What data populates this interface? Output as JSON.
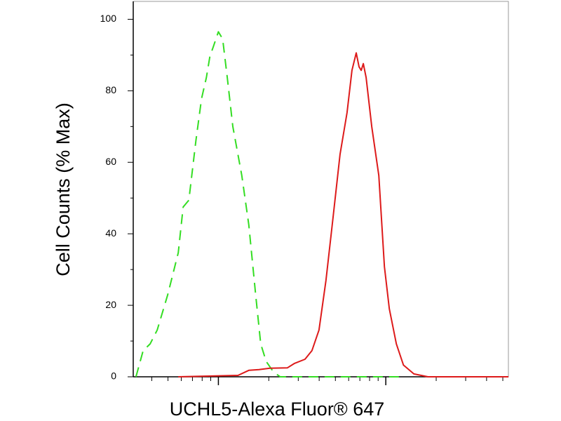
{
  "chart_data": {
    "type": "line",
    "x_label": "UCHL5-Alexa Fluor® 647",
    "y_label": "Cell Counts (% Max)",
    "xscale": "log",
    "xlim": [
      31,
      5400
    ],
    "xticks": [
      40,
      50,
      60,
      70,
      80,
      90,
      100,
      200,
      300,
      400,
      500,
      600,
      700,
      800,
      900,
      1000,
      2000,
      3000,
      4000,
      5000
    ],
    "ylim": [
      0,
      105
    ],
    "yticks": [
      0,
      20,
      40,
      60,
      80,
      100
    ],
    "yminorticks": [
      10,
      30,
      50,
      70,
      90
    ],
    "series": [
      {
        "color": "#33dd22",
        "dash": true,
        "x": [
          32.2,
          35.5,
          39.1,
          43.1,
          49.8,
          57.6,
          61.6,
          66.6,
          73.4,
          79.3,
          84.8,
          89.0,
          93.5,
          100,
          106,
          113,
          122,
          138,
          152,
          167,
          179,
          193,
          213,
          234,
          284,
          1213
        ],
        "values": [
          0,
          7.3,
          9.2,
          13.1,
          22.9,
          34.7,
          47.5,
          49.4,
          66.1,
          77.8,
          83.7,
          89.6,
          92.5,
          96.5,
          94.5,
          83.7,
          70,
          56.3,
          42.5,
          22.9,
          9.2,
          4.3,
          1.4,
          0,
          0,
          0
        ]
      },
      {
        "color": "#dd1a1a",
        "dash": false,
        "x": [
          57.6,
          131,
          152,
          175,
          203,
          258,
          284,
          329,
          362,
          399,
          439,
          484,
          533,
          587,
          628,
          666,
          692,
          713,
          734,
          763,
          824,
          908,
          981,
          1050,
          1156,
          1274,
          1472,
          1786,
          5400
        ],
        "values": [
          0,
          0.4,
          1.8,
          2,
          2.4,
          2.5,
          3.7,
          4.9,
          7.3,
          13.1,
          26.9,
          44.5,
          62.2,
          73.9,
          85.7,
          90.6,
          86.7,
          85.7,
          87.6,
          83.7,
          70,
          56.3,
          30.8,
          19,
          9.2,
          3.3,
          0.8,
          0,
          0
        ]
      }
    ]
  }
}
